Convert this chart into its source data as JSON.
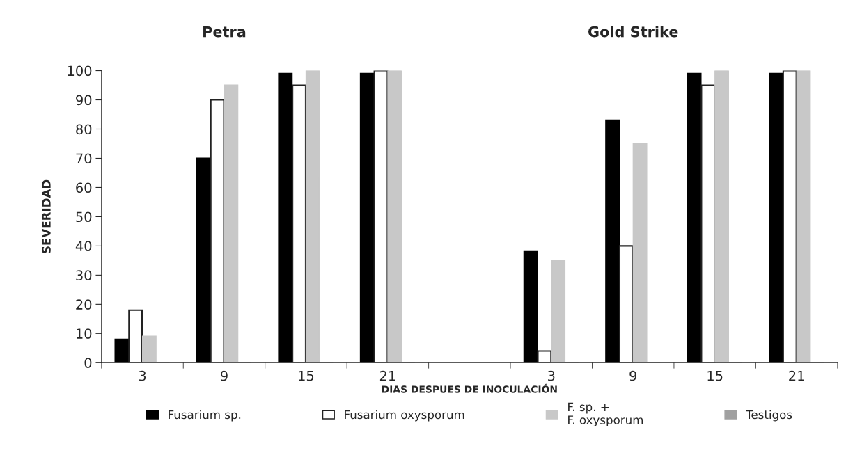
{
  "chart_data": {
    "type": "bar",
    "xlabel": "DIAS DESPUES DE INOCULACIÓN",
    "ylabel": "SEVERIDAD",
    "annotations": [
      "Petra",
      "Gold Strike"
    ],
    "categories": [
      "3",
      "9",
      "15",
      "21",
      null,
      "3",
      "9",
      "15",
      "21"
    ],
    "series": [
      {
        "name": "Fusarium sp.",
        "color": "#000000",
        "values": [
          8,
          70,
          99,
          99,
          null,
          38,
          83,
          99,
          99
        ]
      },
      {
        "name": "Fusarium oxysporum",
        "color": "#ffffff",
        "values": [
          18,
          90,
          95,
          100,
          null,
          4,
          40,
          95,
          100
        ]
      },
      {
        "name": "F. sp. +\nF. oxysporum",
        "color": "#c8c8c8",
        "values": [
          9,
          95,
          100,
          100,
          null,
          35,
          75,
          100,
          100
        ]
      },
      {
        "name": "Testigos",
        "color": "#a0a0a0",
        "values": [
          0,
          0,
          0,
          0,
          null,
          0,
          0,
          0,
          0
        ]
      }
    ],
    "ylim": [
      0,
      100
    ],
    "yticks": [
      0,
      10,
      20,
      30,
      40,
      50,
      60,
      70,
      80,
      90,
      100
    ],
    "grid": false,
    "legend": "bottom"
  }
}
